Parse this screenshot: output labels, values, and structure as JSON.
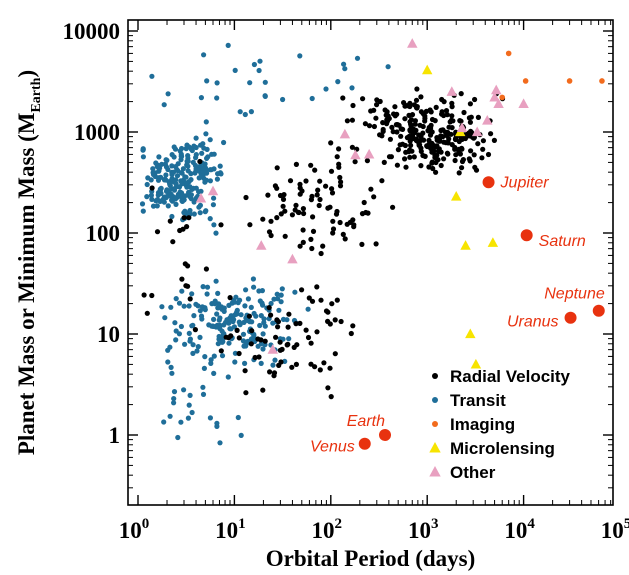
{
  "colors": {
    "radial_velocity": "#000000",
    "transit": "#1f6e99",
    "imaging": "#f26b1d",
    "microlensing": "#f7e400",
    "other": "#e8a0c0",
    "solar_system": "#e8320f",
    "planet_label": "#e8320f"
  },
  "chart_data": {
    "type": "scatter",
    "xscale": "log",
    "yscale": "log",
    "xlim": [
      1,
      100000
    ],
    "ylim": [
      0.4,
      10000
    ],
    "grid": false,
    "legend_position": "bottom-right",
    "xlabel": "Orbital Period (days)",
    "ylabel_main": "Planet Mass or Minimum Mass (M",
    "ylabel_sub": "Earth",
    "ylabel_close": ")",
    "x_ticks": [
      {
        "value": 1,
        "base": "10",
        "exp": "0"
      },
      {
        "value": 10,
        "base": "10",
        "exp": "1"
      },
      {
        "value": 100,
        "base": "10",
        "exp": "2"
      },
      {
        "value": 1000,
        "base": "10",
        "exp": "3"
      },
      {
        "value": 10000,
        "base": "10",
        "exp": "4"
      },
      {
        "value": 100000,
        "base": "10",
        "exp": "5"
      }
    ],
    "y_ticks": [
      {
        "value": 1,
        "label": "1"
      },
      {
        "value": 10,
        "label": "10"
      },
      {
        "value": 100,
        "label": "100"
      },
      {
        "value": 1000,
        "label": "1000"
      },
      {
        "value": 10000,
        "label": "10000"
      }
    ],
    "legend": [
      {
        "name": "Radial Velocity",
        "marker": "dot",
        "color_key": "radial_velocity"
      },
      {
        "name": "Transit",
        "marker": "dot",
        "color_key": "transit"
      },
      {
        "name": "Imaging",
        "marker": "dot",
        "color_key": "imaging"
      },
      {
        "name": "Microlensing",
        "marker": "triangle",
        "color_key": "microlensing"
      },
      {
        "name": "Other",
        "marker": "triangle",
        "color_key": "other"
      }
    ],
    "series": [
      {
        "name": "Imaging",
        "marker": "dot",
        "color_key": "imaging",
        "points": [
          [
            6000,
            2200
          ],
          [
            7000,
            6000
          ],
          [
            10500,
            3200
          ],
          [
            30000,
            3200
          ],
          [
            65000,
            3200
          ]
        ]
      },
      {
        "name": "Microlensing",
        "marker": "triangle",
        "color_key": "microlensing",
        "points": [
          [
            1000,
            4100
          ],
          [
            2000,
            230
          ],
          [
            2500,
            75
          ],
          [
            2800,
            10
          ],
          [
            3200,
            5
          ],
          [
            4800,
            80
          ],
          [
            2200,
            1000
          ]
        ]
      },
      {
        "name": "Other",
        "marker": "triangle",
        "color_key": "other",
        "points": [
          [
            4.5,
            220
          ],
          [
            6,
            260
          ],
          [
            19,
            75
          ],
          [
            40,
            55
          ],
          [
            25,
            7
          ],
          [
            140,
            950
          ],
          [
            180,
            590
          ],
          [
            250,
            600
          ],
          [
            700,
            7500
          ],
          [
            1800,
            2500
          ],
          [
            2300,
            1100
          ],
          [
            3300,
            1000
          ],
          [
            4200,
            1300
          ],
          [
            5000,
            2200
          ],
          [
            5200,
            2600
          ],
          [
            10000,
            1900
          ],
          [
            5500,
            1900
          ]
        ]
      }
    ],
    "solar_system": [
      {
        "name": "Venus",
        "x": 225,
        "y": 0.82,
        "label_anchor": "end",
        "label_dx": -10,
        "label_dy": 3
      },
      {
        "name": "Earth",
        "x": 365,
        "y": 1.0,
        "label_anchor": "end",
        "label_dx": 0,
        "label_dy": -14
      },
      {
        "name": "Jupiter",
        "x": 4330,
        "y": 318,
        "label_anchor": "start",
        "label_dx": 12,
        "label_dy": 0
      },
      {
        "name": "Saturn",
        "x": 10760,
        "y": 95,
        "label_anchor": "start",
        "label_dx": 12,
        "label_dy": 6
      },
      {
        "name": "Uranus",
        "x": 30700,
        "y": 14.5,
        "label_anchor": "end",
        "label_dx": -12,
        "label_dy": 4
      },
      {
        "name": "Neptune",
        "x": 60200,
        "y": 17,
        "label_anchor": "end",
        "label_dx": 6,
        "label_dy": -17
      }
    ],
    "radial_velocity_clusters": [
      {
        "count": 150,
        "logx": [
          2.1,
          3.85
        ],
        "logy": [
          2.6,
          3.55
        ],
        "seed": 11
      },
      {
        "count": 110,
        "logx": [
          2.6,
          3.7
        ],
        "logy": [
          2.5,
          3.2
        ],
        "seed": 12
      },
      {
        "count": 90,
        "logx": [
          1.0,
          2.8
        ],
        "logy": [
          1.6,
          3.0
        ],
        "seed": 13
      },
      {
        "count": 70,
        "logx": [
          0.6,
          2.4
        ],
        "logy": [
          0.15,
          1.7
        ],
        "seed": 14
      },
      {
        "count": 22,
        "logx": [
          0.0,
          0.9
        ],
        "logy": [
          0.0,
          3.9
        ],
        "seed": 15
      }
    ],
    "transit_clusters": [
      {
        "count": 150,
        "logx": [
          0.0,
          0.7
        ],
        "logy": [
          2.0,
          3.0
        ],
        "seed": 21
      },
      {
        "count": 90,
        "logx": [
          0.3,
          0.9
        ],
        "logy": [
          1.8,
          3.3
        ],
        "seed": 22
      },
      {
        "count": 190,
        "logx": [
          0.2,
          1.8
        ],
        "logy": [
          0.55,
          1.65
        ],
        "seed": 23
      },
      {
        "count": 30,
        "logx": [
          0.0,
          2.6
        ],
        "logy": [
          2.9,
          3.95
        ],
        "seed": 24
      },
      {
        "count": 25,
        "logx": [
          0.0,
          1.3
        ],
        "logy": [
          -0.35,
          0.9
        ],
        "seed": 25
      }
    ]
  }
}
